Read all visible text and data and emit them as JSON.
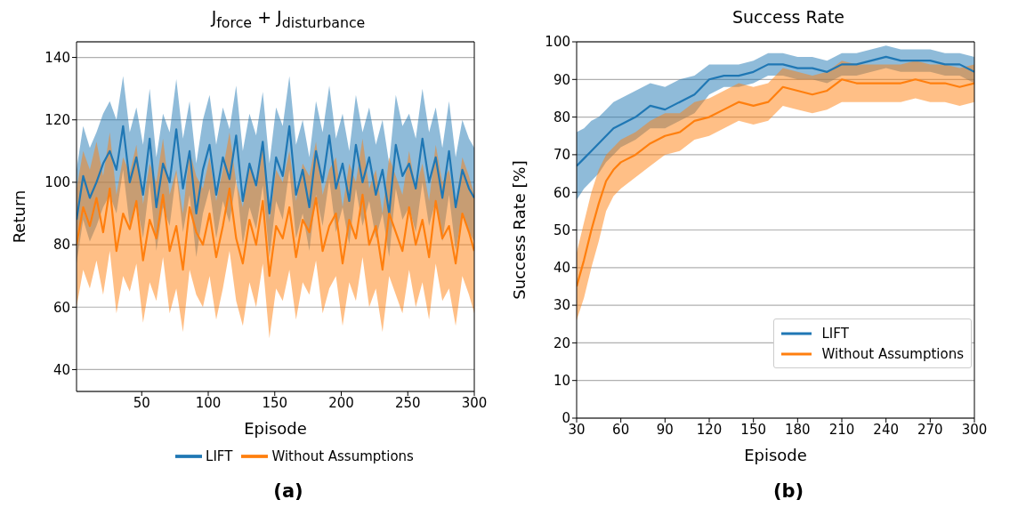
{
  "chart_data": [
    {
      "type": "line",
      "title": "J$_{force}$ + J$_{disturbance}$",
      "xlabel": "Episode",
      "ylabel": "Return",
      "x": [
        1,
        6,
        11,
        16,
        21,
        26,
        31,
        36,
        41,
        46,
        51,
        56,
        61,
        66,
        71,
        76,
        81,
        86,
        91,
        96,
        101,
        106,
        111,
        116,
        121,
        126,
        131,
        136,
        141,
        146,
        151,
        156,
        161,
        166,
        171,
        176,
        181,
        186,
        191,
        196,
        201,
        206,
        211,
        216,
        221,
        226,
        231,
        236,
        241,
        246,
        251,
        256,
        261,
        266,
        271,
        276,
        281,
        286,
        291,
        296,
        300
      ],
      "series": [
        {
          "name": "LIFT",
          "color": "#1f77b4",
          "values": [
            88,
            102,
            95,
            100,
            106,
            110,
            104,
            118,
            100,
            108,
            96,
            114,
            92,
            106,
            100,
            117,
            98,
            110,
            90,
            104,
            112,
            96,
            108,
            101,
            115,
            94,
            106,
            99,
            113,
            90,
            108,
            102,
            118,
            96,
            104,
            92,
            110,
            100,
            115,
            98,
            106,
            94,
            112,
            100,
            108,
            96,
            104,
            90,
            112,
            102,
            106,
            98,
            114,
            100,
            108,
            95,
            110,
            92,
            104,
            98,
            95
          ],
          "lower": [
            74,
            88,
            81,
            86,
            92,
            96,
            90,
            104,
            86,
            94,
            82,
            100,
            78,
            92,
            86,
            103,
            84,
            96,
            76,
            90,
            98,
            82,
            94,
            87,
            101,
            80,
            92,
            85,
            99,
            76,
            94,
            88,
            104,
            82,
            90,
            78,
            96,
            86,
            101,
            84,
            92,
            80,
            98,
            86,
            94,
            82,
            90,
            76,
            98,
            88,
            92,
            84,
            100,
            86,
            94,
            81,
            96,
            78,
            90,
            84,
            81
          ],
          "upper": [
            104,
            118,
            111,
            116,
            122,
            126,
            120,
            134,
            116,
            124,
            112,
            130,
            108,
            122,
            116,
            133,
            114,
            126,
            106,
            120,
            128,
            112,
            124,
            117,
            131,
            110,
            122,
            115,
            129,
            106,
            124,
            118,
            134,
            112,
            120,
            108,
            126,
            116,
            131,
            114,
            122,
            110,
            128,
            116,
            124,
            112,
            120,
            106,
            128,
            118,
            122,
            114,
            130,
            116,
            124,
            111,
            126,
            108,
            120,
            114,
            111
          ]
        },
        {
          "name": "Without Assumptions",
          "color": "#ff7f0e",
          "values": [
            80,
            92,
            86,
            95,
            84,
            98,
            78,
            90,
            85,
            94,
            75,
            88,
            82,
            96,
            78,
            86,
            72,
            92,
            84,
            80,
            90,
            76,
            86,
            98,
            82,
            74,
            88,
            80,
            94,
            70,
            86,
            82,
            92,
            76,
            88,
            84,
            95,
            78,
            86,
            90,
            74,
            88,
            82,
            96,
            80,
            86,
            72,
            90,
            84,
            78,
            92,
            80,
            88,
            76,
            94,
            82,
            86,
            74,
            90,
            84,
            78
          ],
          "lower": [
            60,
            72,
            66,
            75,
            64,
            78,
            58,
            70,
            65,
            74,
            55,
            68,
            62,
            76,
            58,
            66,
            52,
            72,
            64,
            60,
            70,
            56,
            66,
            78,
            62,
            54,
            68,
            60,
            74,
            50,
            66,
            62,
            72,
            56,
            68,
            64,
            75,
            58,
            66,
            70,
            54,
            68,
            62,
            76,
            60,
            66,
            52,
            70,
            64,
            58,
            72,
            60,
            68,
            56,
            74,
            62,
            66,
            54,
            70,
            64,
            58
          ],
          "upper": [
            98,
            110,
            104,
            113,
            102,
            116,
            96,
            108,
            103,
            112,
            93,
            106,
            100,
            114,
            96,
            104,
            90,
            110,
            102,
            98,
            108,
            94,
            104,
            116,
            100,
            92,
            106,
            98,
            112,
            88,
            104,
            100,
            110,
            94,
            106,
            102,
            113,
            96,
            104,
            108,
            92,
            106,
            100,
            114,
            98,
            104,
            90,
            108,
            102,
            96,
            110,
            98,
            106,
            94,
            112,
            100,
            104,
            92,
            108,
            102,
            96
          ]
        }
      ],
      "xlim": [
        1,
        300
      ],
      "xticks": [
        50,
        100,
        150,
        200,
        250,
        300
      ],
      "ylim": [
        33,
        145
      ],
      "yticks": [
        40,
        60,
        80,
        100,
        120,
        140
      ],
      "grid": "y",
      "legend": "bottom",
      "annotations": [
        "(a)"
      ]
    },
    {
      "type": "line",
      "title": "Success Rate",
      "xlabel": "Episode",
      "ylabel": "Success Rate [%]",
      "x": [
        30,
        35,
        40,
        45,
        50,
        55,
        60,
        70,
        80,
        90,
        100,
        110,
        120,
        130,
        140,
        150,
        160,
        170,
        180,
        190,
        200,
        210,
        220,
        230,
        240,
        250,
        260,
        270,
        280,
        290,
        300
      ],
      "series": [
        {
          "name": "LIFT",
          "color": "#1f77b4",
          "values": [
            67,
            69,
            71,
            73,
            75,
            77,
            78,
            80,
            83,
            82,
            84,
            86,
            90,
            91,
            91,
            92,
            94,
            94,
            93,
            93,
            92,
            94,
            94,
            95,
            96,
            95,
            95,
            95,
            94,
            94,
            92
          ],
          "lower": [
            58,
            61,
            63,
            65,
            68,
            70,
            72,
            74,
            77,
            77,
            79,
            81,
            86,
            88,
            88,
            89,
            91,
            91,
            90,
            90,
            89,
            91,
            91,
            92,
            93,
            92,
            92,
            92,
            91,
            91,
            89
          ],
          "upper": [
            76,
            77,
            79,
            80,
            82,
            84,
            85,
            87,
            89,
            88,
            90,
            91,
            94,
            94,
            94,
            95,
            97,
            97,
            96,
            96,
            95,
            97,
            97,
            98,
            99,
            98,
            98,
            98,
            97,
            97,
            96
          ]
        },
        {
          "name": "Without Assumptions",
          "color": "#ff7f0e",
          "values": [
            35,
            42,
            50,
            57,
            63,
            66,
            68,
            70,
            73,
            75,
            76,
            79,
            80,
            82,
            84,
            83,
            84,
            88,
            87,
            86,
            87,
            90,
            89,
            89,
            89,
            89,
            90,
            89,
            89,
            88,
            89
          ],
          "lower": [
            26,
            32,
            40,
            47,
            55,
            59,
            61,
            64,
            67,
            70,
            71,
            74,
            75,
            77,
            79,
            78,
            79,
            83,
            82,
            81,
            82,
            84,
            84,
            84,
            84,
            84,
            85,
            84,
            84,
            83,
            84
          ],
          "upper": [
            44,
            52,
            60,
            66,
            70,
            72,
            74,
            76,
            79,
            81,
            81,
            84,
            85,
            87,
            89,
            88,
            89,
            93,
            92,
            91,
            92,
            95,
            94,
            94,
            94,
            94,
            95,
            94,
            94,
            93,
            94
          ]
        }
      ],
      "xlim": [
        30,
        300
      ],
      "xticks": [
        30,
        60,
        90,
        120,
        150,
        180,
        210,
        240,
        270,
        300
      ],
      "ylim": [
        0,
        100
      ],
      "yticks": [
        0,
        10,
        20,
        30,
        40,
        50,
        60,
        70,
        80,
        90,
        100
      ],
      "grid": "y",
      "legend": "bottom right",
      "annotations": [
        "(b)"
      ]
    }
  ]
}
